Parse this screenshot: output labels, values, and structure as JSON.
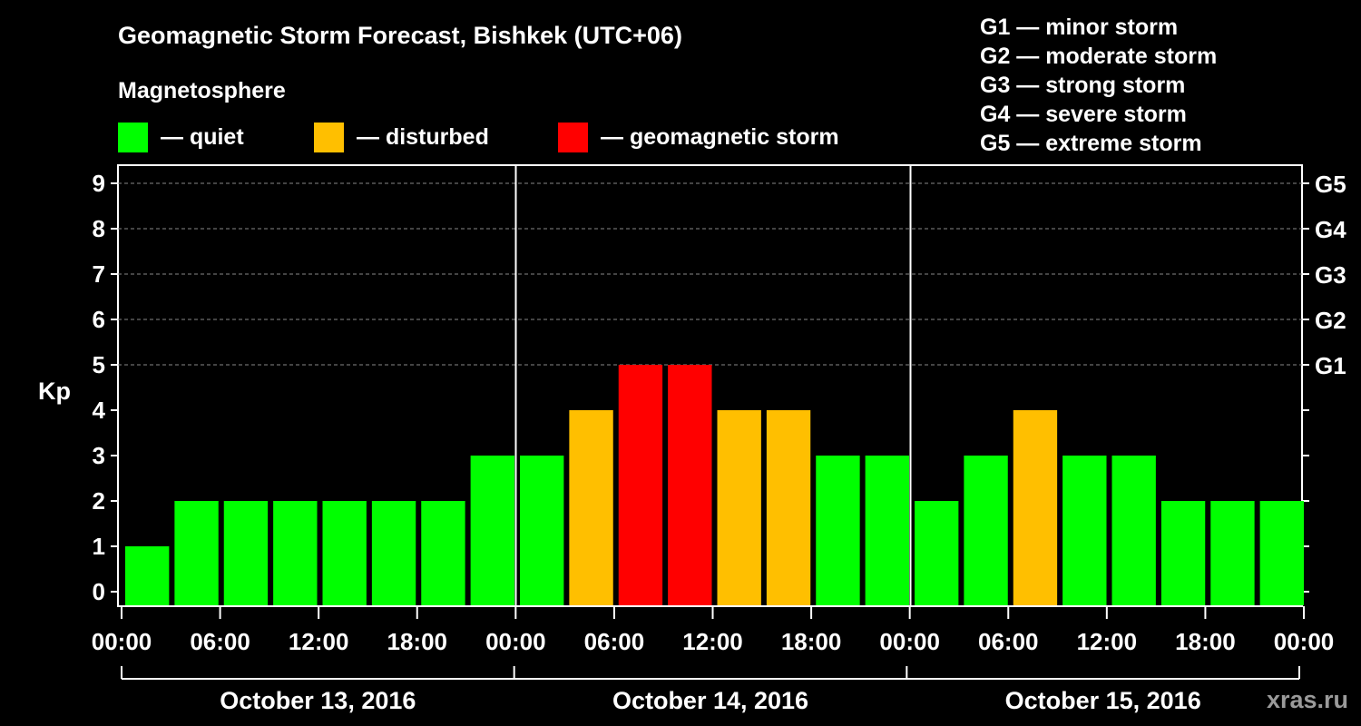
{
  "title": "Geomagnetic Storm Forecast, Bishkek (UTC+06)",
  "magnetosphere": {
    "heading": "Magnetosphere",
    "legend": [
      {
        "label": "— quiet",
        "color": "#00ff00"
      },
      {
        "label": "— disturbed",
        "color": "#ffbf00"
      },
      {
        "label": "— geomagnetic storm",
        "color": "#ff0000"
      }
    ]
  },
  "storm_scale": [
    "G1 — minor storm",
    "G2 — moderate storm",
    "G3 — strong storm",
    "G4 — severe storm",
    "G5 — extreme storm"
  ],
  "watermark": "xras.ru",
  "chart_data": {
    "type": "bar",
    "ylabel": "Kp",
    "ylim": [
      0,
      9
    ],
    "yticks": [
      0,
      1,
      2,
      3,
      4,
      5,
      6,
      7,
      8,
      9
    ],
    "right_axis": [
      {
        "kp": 5,
        "label": "G1"
      },
      {
        "kp": 6,
        "label": "G2"
      },
      {
        "kp": 7,
        "label": "G3"
      },
      {
        "kp": 8,
        "label": "G4"
      },
      {
        "kp": 9,
        "label": "G5"
      }
    ],
    "xticks": [
      "00:00",
      "06:00",
      "12:00",
      "18:00",
      "00:00",
      "06:00",
      "12:00",
      "18:00",
      "00:00",
      "06:00",
      "12:00",
      "18:00",
      "00:00"
    ],
    "days": [
      "October 13, 2016",
      "October 14, 2016",
      "October 15, 2016"
    ],
    "interval_hours": 3,
    "values": [
      1,
      2,
      2,
      2,
      2,
      2,
      2,
      3,
      3,
      4,
      5,
      5,
      4,
      4,
      3,
      3,
      2,
      3,
      4,
      3,
      3,
      2,
      2,
      2
    ],
    "color_thresholds": {
      "quiet_max": 3,
      "disturbed_max": 4
    },
    "colors": {
      "quiet": "#00ff00",
      "disturbed": "#ffbf00",
      "storm": "#ff0000"
    }
  }
}
